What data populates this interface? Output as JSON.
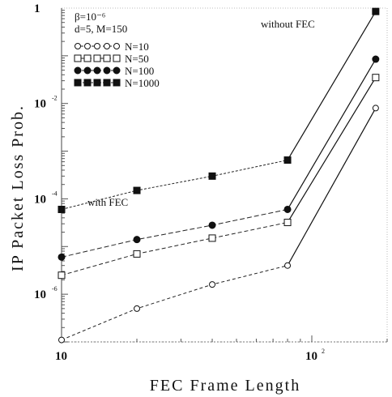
{
  "chart_data": {
    "type": "line",
    "title": "",
    "xlabel": "FEC Frame Length",
    "ylabel": "IP Packet Loss Prob.",
    "x_scale": "log",
    "y_scale": "log",
    "xlim": [
      10,
      200
    ],
    "ylim": [
      1e-07,
      1
    ],
    "grid": false,
    "legend_position": "top-left",
    "x_ticks": [
      {
        "value": 10,
        "base": "10",
        "exp": ""
      },
      {
        "value": 100,
        "base": "10",
        "exp": "2"
      }
    ],
    "y_ticks": [
      {
        "value": 1,
        "base": "1",
        "exp": ""
      },
      {
        "value": 0.01,
        "base": "10",
        "exp": "-2"
      },
      {
        "value": 0.0001,
        "base": "10",
        "exp": "-4"
      },
      {
        "value": 1e-06,
        "base": "10",
        "exp": "-6"
      }
    ],
    "legend_header": [
      "β=10⁻⁶",
      "d=5,  M=150"
    ],
    "annotations": [
      "without FEC",
      "with FEC"
    ],
    "series": [
      {
        "name": "N=10",
        "marker": "circle-open",
        "x": [
          10,
          20,
          40,
          80,
          180
        ],
        "y": [
          1.1e-07,
          5e-07,
          1.6e-06,
          4e-06,
          0.008
        ]
      },
      {
        "name": "N=50",
        "marker": "square-open",
        "x": [
          10,
          20,
          40,
          80,
          180
        ],
        "y": [
          2.5e-06,
          7e-06,
          1.5e-05,
          3.2e-05,
          0.035
        ]
      },
      {
        "name": "N=100",
        "marker": "circle-filled",
        "x": [
          10,
          20,
          40,
          80,
          180
        ],
        "y": [
          6e-06,
          1.4e-05,
          2.8e-05,
          6e-05,
          0.085
        ]
      },
      {
        "name": "N=1000",
        "marker": "square-filled",
        "x": [
          10,
          20,
          40,
          80,
          180
        ],
        "y": [
          6e-05,
          0.00015,
          0.0003,
          0.00065,
          0.85
        ]
      }
    ]
  }
}
